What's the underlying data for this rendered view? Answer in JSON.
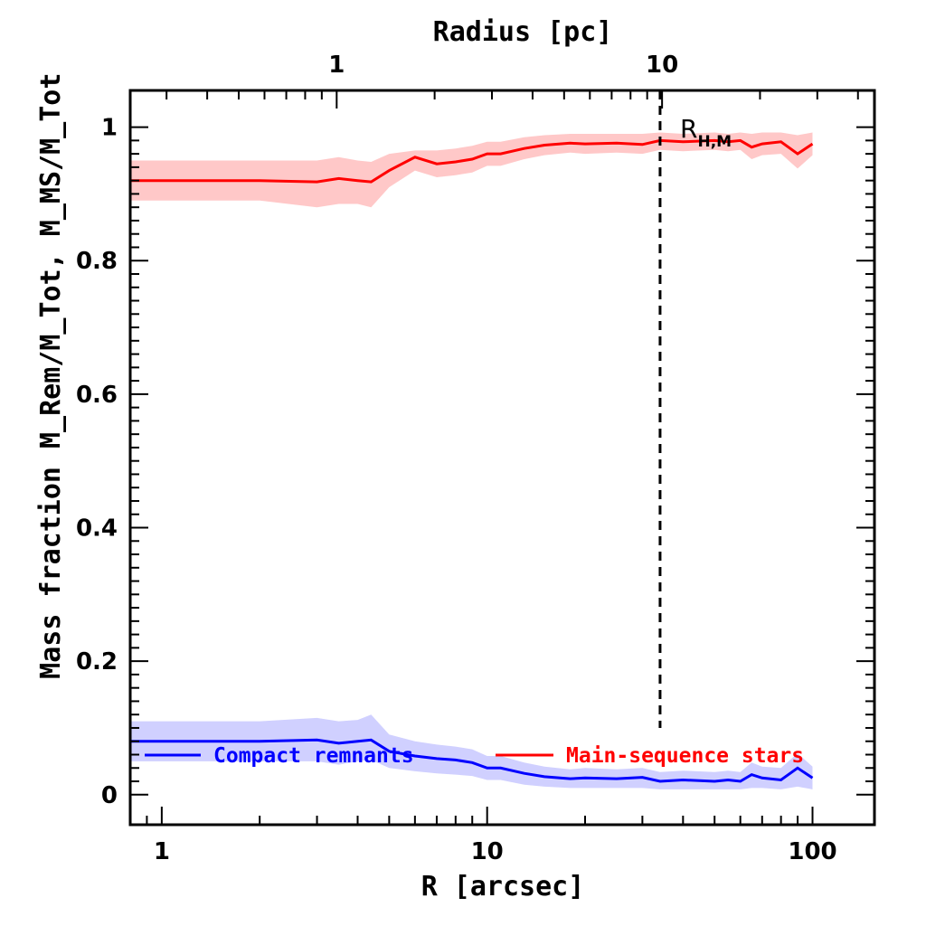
{
  "chart_data": {
    "type": "line",
    "xlabel": "R [arcsec]",
    "x2label": "Radius [pc]",
    "ylabel": "Mass fraction",
    "ylabel_math": "M_Rem/M_Tot, M_MS/M_Tot",
    "xscale": "log",
    "xlim": [
      0.8,
      155
    ],
    "ylim": [
      -0.045,
      1.055
    ],
    "x_ticks": [
      "1",
      "10",
      "100"
    ],
    "y_ticks": [
      "0",
      "0.2",
      "0.4",
      "0.6",
      "0.8",
      "1"
    ],
    "x2_ticks": [
      "1",
      "10"
    ],
    "pc_per_arcsec": 0.29,
    "grid": false,
    "legend_position": "bottom",
    "annotation": {
      "text": "R",
      "subscript": "H,M",
      "x_arcsec": 34
    },
    "series": [
      {
        "name": "Compact remnants",
        "color": "#0000ff",
        "band_color": "#d0d0ff",
        "x": [
          0.8,
          1,
          2,
          3,
          3.5,
          4,
          4.4,
          5,
          6,
          7,
          8,
          9,
          10,
          11,
          13,
          15,
          18,
          20,
          25,
          30,
          34,
          40,
          50,
          55,
          60,
          65,
          70,
          80,
          90,
          100
        ],
        "y": [
          0.08,
          0.08,
          0.08,
          0.082,
          0.077,
          0.08,
          0.082,
          0.065,
          0.058,
          0.054,
          0.052,
          0.048,
          0.04,
          0.04,
          0.032,
          0.027,
          0.024,
          0.025,
          0.024,
          0.026,
          0.02,
          0.022,
          0.02,
          0.022,
          0.02,
          0.03,
          0.025,
          0.022,
          0.04,
          0.025
        ],
        "lower": [
          0.05,
          0.05,
          0.05,
          0.05,
          0.045,
          0.05,
          0.052,
          0.04,
          0.035,
          0.032,
          0.03,
          0.028,
          0.022,
          0.022,
          0.015,
          0.012,
          0.01,
          0.01,
          0.01,
          0.01,
          0.008,
          0.008,
          0.008,
          0.008,
          0.008,
          0.01,
          0.01,
          0.008,
          0.012,
          0.008
        ],
        "upper": [
          0.11,
          0.11,
          0.11,
          0.115,
          0.11,
          0.112,
          0.12,
          0.09,
          0.08,
          0.075,
          0.072,
          0.068,
          0.058,
          0.058,
          0.048,
          0.042,
          0.038,
          0.04,
          0.038,
          0.04,
          0.034,
          0.036,
          0.034,
          0.036,
          0.034,
          0.048,
          0.042,
          0.04,
          0.062,
          0.042
        ]
      },
      {
        "name": "Main-sequence stars",
        "color": "#ff0000",
        "band_color": "#ffc8c8",
        "x": [
          0.8,
          1,
          2,
          3,
          3.5,
          4,
          4.4,
          5,
          6,
          7,
          8,
          9,
          10,
          11,
          13,
          15,
          18,
          20,
          25,
          30,
          34,
          40,
          50,
          55,
          60,
          65,
          70,
          80,
          90,
          100
        ],
        "y": [
          0.92,
          0.92,
          0.92,
          0.918,
          0.923,
          0.92,
          0.918,
          0.935,
          0.955,
          0.945,
          0.948,
          0.952,
          0.96,
          0.96,
          0.968,
          0.973,
          0.976,
          0.975,
          0.976,
          0.974,
          0.98,
          0.978,
          0.98,
          0.978,
          0.98,
          0.97,
          0.975,
          0.978,
          0.96,
          0.975
        ],
        "lower": [
          0.89,
          0.89,
          0.89,
          0.88,
          0.885,
          0.885,
          0.88,
          0.91,
          0.935,
          0.925,
          0.928,
          0.932,
          0.942,
          0.942,
          0.952,
          0.958,
          0.962,
          0.96,
          0.962,
          0.96,
          0.966,
          0.964,
          0.966,
          0.964,
          0.966,
          0.952,
          0.958,
          0.96,
          0.938,
          0.958
        ],
        "upper": [
          0.95,
          0.95,
          0.95,
          0.95,
          0.955,
          0.95,
          0.948,
          0.96,
          0.965,
          0.965,
          0.968,
          0.972,
          0.978,
          0.978,
          0.985,
          0.988,
          0.99,
          0.99,
          0.99,
          0.99,
          0.992,
          0.99,
          0.992,
          0.99,
          0.992,
          0.99,
          0.992,
          0.992,
          0.988,
          0.992
        ]
      }
    ]
  }
}
